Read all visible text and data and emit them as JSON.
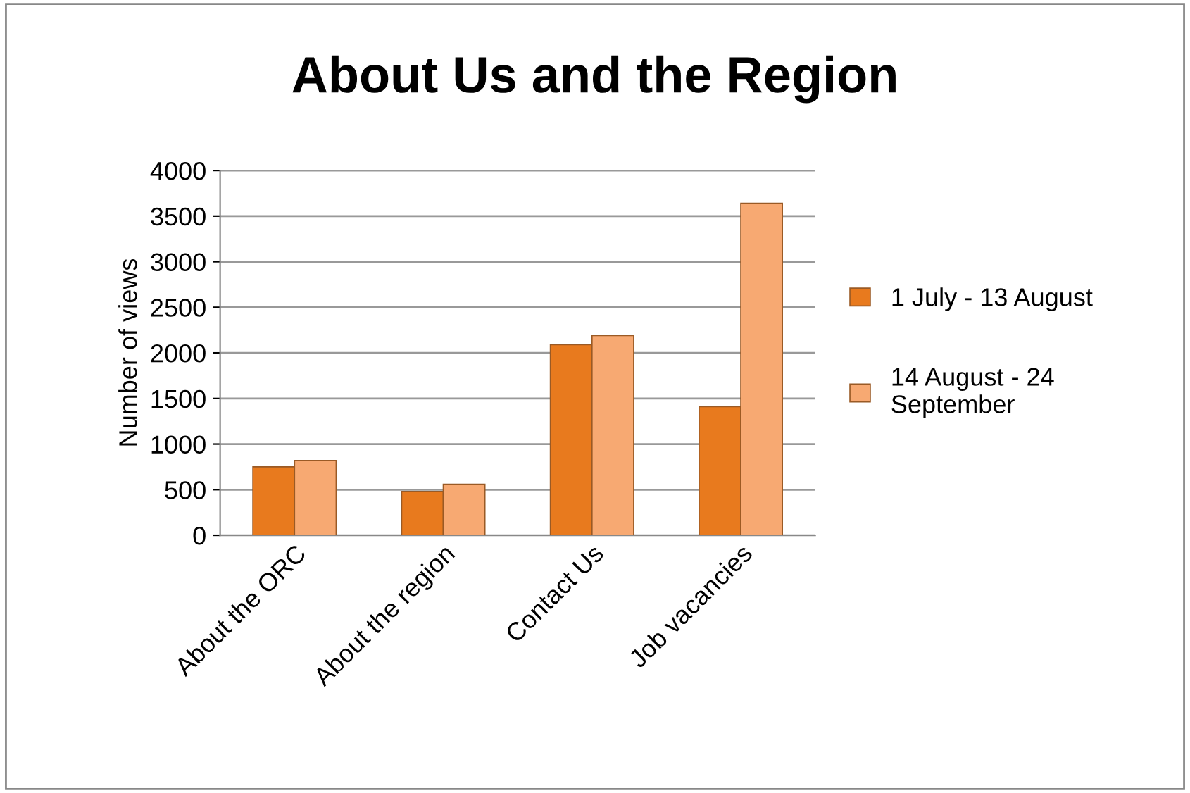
{
  "chart_data": {
    "type": "bar",
    "title": "About Us and the Region",
    "ylabel": "Number of views",
    "categories": [
      "About the ORC",
      "About the region",
      "Contact Us",
      "Job vacancies"
    ],
    "series": [
      {
        "name": "1 July - 13 August",
        "color": "#e87a1e",
        "values": [
          750,
          480,
          2090,
          1410
        ]
      },
      {
        "name": "14 August - 24\nSeptember",
        "color": "#f7a972",
        "values": [
          820,
          560,
          2190,
          3640
        ]
      }
    ],
    "ylim": [
      0,
      4000
    ],
    "yticks": [
      0,
      500,
      1000,
      1500,
      2000,
      2500,
      3000,
      3500,
      4000
    ],
    "grid": "y",
    "legend": "right"
  }
}
